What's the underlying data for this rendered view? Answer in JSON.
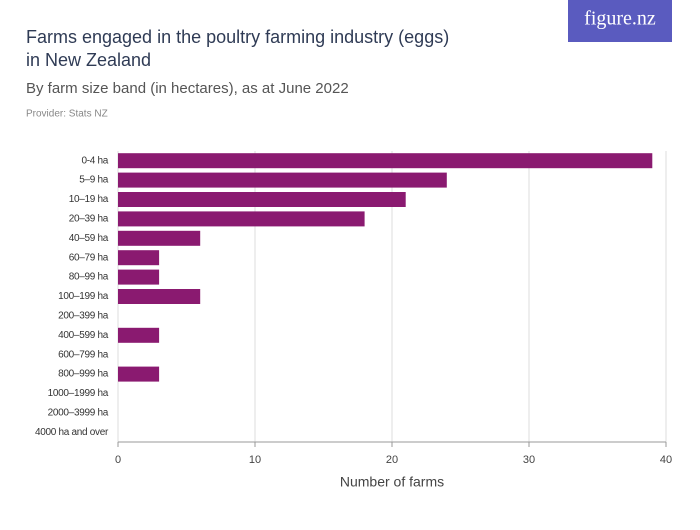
{
  "logo": "figure.nz",
  "chart_data": {
    "type": "hbar",
    "title_lines": [
      "Farms engaged in the poultry farming industry (eggs)",
      "in New Zealand"
    ],
    "subtitle": "By farm size band (in hectares), as at June 2022",
    "provider": "Provider: Stats NZ",
    "x_label": "Number of farms",
    "categories": [
      "0-4 ha",
      "5–9 ha",
      "10–19 ha",
      "20–39 ha",
      "40–59 ha",
      "60–79 ha",
      "80–99 ha",
      "100–199 ha",
      "200–399 ha",
      "400–599 ha",
      "600–799 ha",
      "800–999 ha",
      "1000–1999 ha",
      "2000–3999 ha",
      "4000 ha and over"
    ],
    "values": [
      39,
      24,
      21,
      18,
      6,
      3,
      3,
      6,
      0,
      3,
      0,
      3,
      0,
      0,
      0
    ],
    "color": "#8a1a70",
    "xlim": [
      0,
      40
    ],
    "xticks": [
      0,
      10,
      20,
      30,
      40
    ],
    "grid": true
  }
}
